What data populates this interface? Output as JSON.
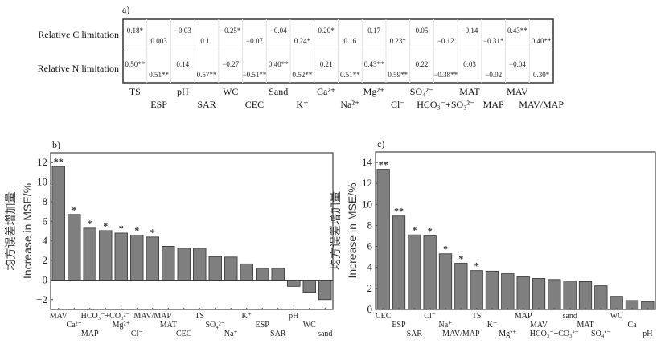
{
  "chart_data": [
    {
      "type": "table",
      "panel": "a)",
      "rows": [
        "Relative C limitation",
        "Relative N limitation"
      ],
      "columns": [
        "TS",
        "ESP",
        "pH",
        "SAR",
        "WC",
        "CEC",
        "Sand",
        "K⁺",
        "Ca²⁺",
        "Na²⁺",
        "Mg²⁺",
        "Cl⁻",
        "SO₄²⁻",
        "HCO₃⁻+SO₃²⁻",
        "MAT",
        "MAP",
        "MAV",
        "MAV/MAP"
      ],
      "values": [
        [
          "0.18*",
          "0.003",
          "−0.03",
          "0.11",
          "−0.25*",
          "−0.07",
          "−0.04",
          "0.24*",
          "0.20*",
          "0.16",
          "0.17",
          "0.23*",
          "0.05",
          "−0.12",
          "−0.14",
          "−0.31*",
          "0.43**",
          "0.40**"
        ],
        [
          "0.50**",
          "0.51**",
          "0.14",
          "0.57**",
          "−0.27",
          "−0.51**",
          "0.40**",
          "0.52**",
          "0.21",
          "0.51**",
          "0.43**",
          "0.59**",
          "0.22",
          "−0.38**",
          "0.03",
          "−0.02",
          "−0.04",
          "0.30*"
        ]
      ]
    },
    {
      "type": "bar",
      "panel": "b)",
      "ylabel_cn": "均方误差增加量",
      "ylabel": "Increase in MSE/%",
      "ylim": [
        -3,
        13
      ],
      "yticks": [
        -2,
        0,
        2,
        4,
        6,
        8,
        10,
        12
      ],
      "ytick_labels": [
        "−2",
        "0",
        "2",
        "4",
        "6",
        "8",
        "10",
        "12"
      ],
      "categories": [
        "MAV",
        "Ca²⁺",
        "MAP",
        "HCO₃⁻+CO₃²⁻",
        "Mg²⁺",
        "Cl⁻",
        "MAV/MAP",
        "MAT",
        "CEC",
        "TS",
        "SO₄²⁻",
        "Na⁺",
        "K⁺",
        "ESP",
        "SAR",
        "pH",
        "WC",
        "sand"
      ],
      "values": [
        11.6,
        6.7,
        5.3,
        5.05,
        4.8,
        4.6,
        4.4,
        3.45,
        3.25,
        3.25,
        2.4,
        2.35,
        1.65,
        1.2,
        1.2,
        -0.65,
        -1.25,
        -2.0
      ],
      "significance": [
        "**",
        "*",
        "*",
        "*",
        "*",
        "*",
        "*",
        "",
        "",
        "",
        "",
        "",
        "",
        "",
        "",
        "",
        "",
        ""
      ],
      "bar_color": "#7f7f7f"
    },
    {
      "type": "bar",
      "panel": "c)",
      "ylabel_cn": "均方误差增加量",
      "ylabel": "Increase in MSE/%",
      "ylim": [
        0,
        15
      ],
      "yticks": [
        0,
        2,
        4,
        6,
        8,
        10,
        12,
        14
      ],
      "ytick_labels": [
        "0",
        "2",
        "4",
        "6",
        "8",
        "10",
        "12",
        "14"
      ],
      "categories": [
        "CEC",
        "ESP",
        "SAR",
        "Cl⁻",
        "Na⁺",
        "MAV/MAP",
        "TS",
        "K⁺",
        "Mg²⁺",
        "MAP",
        "MAV",
        "HCO₃⁻+CO₃²⁻",
        "sand",
        "MAT",
        "SO₄²⁻",
        "WC",
        "Ca",
        "pH"
      ],
      "values": [
        13.35,
        8.9,
        7.1,
        7.0,
        5.3,
        4.4,
        3.7,
        3.65,
        3.4,
        3.1,
        2.95,
        2.85,
        2.7,
        2.65,
        2.25,
        1.25,
        0.85,
        0.75
      ],
      "significance": [
        "**",
        "**",
        "*",
        "*",
        "*",
        "*",
        "*",
        "",
        "",
        "",
        "",
        "",
        "",
        "",
        "",
        "",
        "",
        ""
      ],
      "bar_color": "#7f7f7f"
    }
  ]
}
